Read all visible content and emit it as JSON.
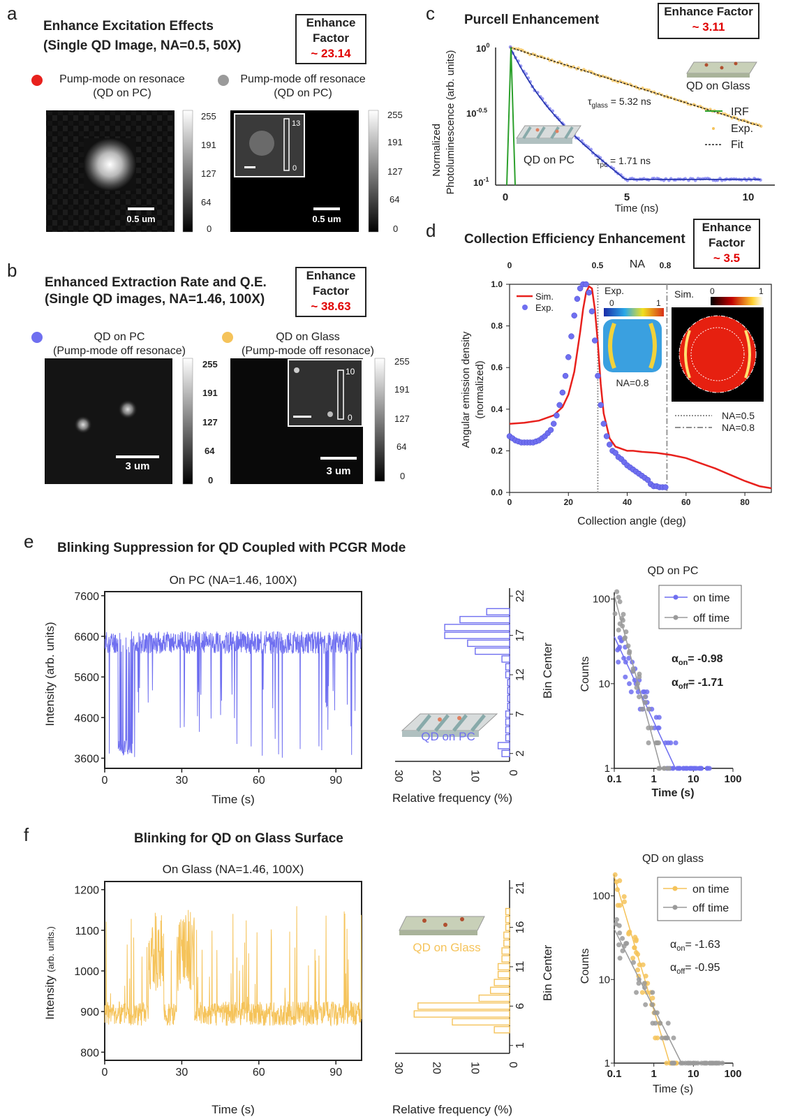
{
  "panels": {
    "a": {
      "label": "a",
      "title1": "Enhance Excitation Effects",
      "title2": "(Single QD Image, NA=0.5, 50X)",
      "box_line1": "Enhance",
      "box_line2": "Factor",
      "box_value": "~ 23.14",
      "legend_on": "Pump-mode on resonace",
      "legend_on_sub": "(QD on PC)",
      "legend_off": "Pump-mode off resonace",
      "legend_off_sub": "(QD on PC)",
      "scale_label": "0.5 um",
      "colorbar_ticks": [
        "255",
        "191",
        "127",
        "64",
        "0"
      ],
      "inset_ticks": [
        "13",
        "0"
      ]
    },
    "b": {
      "label": "b",
      "title1": "Enhanced Extraction Rate and Q.E.",
      "title2": "(Single QD images, NA=1.46, 100X)",
      "box_line1": "Enhance",
      "box_line2": "Factor",
      "box_value": "~ 38.63",
      "legend_pc": "QD on PC",
      "legend_pc_sub": "(Pump-mode off resonace)",
      "legend_glass": "QD on Glass",
      "legend_glass_sub": "(Pump-mode off resonace)",
      "scale_label": "3 um",
      "colorbar_ticks": [
        "255",
        "191",
        "127",
        "64",
        "0"
      ],
      "inset_ticks": [
        "10",
        "0"
      ]
    },
    "c": {
      "label": "c",
      "title": "Purcell Enhancement",
      "box_line1": "Enhance Factor",
      "box_value": "~ 3.11",
      "ylabel1": "Normalized",
      "ylabel2": "Photoluminescence (arb. units)",
      "xlabel": "Time (ns)",
      "yticks": [
        "10",
        "10",
        "10"
      ],
      "yticks_exp": [
        "0",
        "-0.5",
        "-1"
      ],
      "xticks": [
        "0",
        "5",
        "10"
      ],
      "tau_glass_sym": "τ",
      "tau_glass_sub": "glass",
      "tau_glass_val": " = 5.32 ns",
      "tau_pc_sym": "τ",
      "tau_pc_sub": "pc",
      "tau_pc_val": " = 1.71 ns",
      "label_glass": "QD on Glass",
      "label_pc": "QD on PC",
      "legend": [
        "IRF",
        "Exp.",
        "Fit"
      ]
    },
    "d": {
      "label": "d",
      "title": "Collection Efficiency Enhancement",
      "box_line1": "Enhance",
      "box_line2": "Factor",
      "box_value": "~ 3.5",
      "top_axis_label": "NA",
      "top_ticks": [
        "0",
        "0.5",
        "0.8"
      ],
      "ylabel1": "Angular emission density",
      "ylabel2": "(normalized)",
      "xlabel": "Collection angle (deg)",
      "xticks": [
        "0",
        "20",
        "40",
        "60",
        "80"
      ],
      "yticks": [
        "0.0",
        "0.2",
        "0.4",
        "0.6",
        "0.8",
        "1.0"
      ],
      "legend": [
        "Sim.",
        "Exp."
      ],
      "exp_inset_title": "Exp.",
      "exp_scale": [
        "0",
        "1"
      ],
      "exp_inset_na": "NA=0.8",
      "sim_inset_title": "Sim.",
      "sim_scale": [
        "0",
        "1"
      ],
      "na_legend": [
        "NA=0.5",
        "NA=0.8"
      ]
    },
    "e": {
      "label": "e",
      "title": "Blinking Suppression for QD Coupled with PCGR Mode",
      "trace_title": "On PC  (NA=1.46, 100X)",
      "ylabel": "Intensity (arb. units)",
      "xlabel": "Time (s)",
      "yticks": [
        "7600",
        "6600",
        "5600",
        "4600",
        "3600"
      ],
      "xticks": [
        "0",
        "30",
        "60",
        "90"
      ],
      "hist_xlabel": "Relative frequency (%)",
      "hist_xticks": [
        "30",
        "20",
        "10",
        "0"
      ],
      "hist_ylabel": "Bin Center",
      "hist_yticks": [
        "22",
        "17",
        "12",
        "7",
        "2"
      ],
      "hist_label": "QD on PC",
      "log_title": "QD on PC",
      "log_ylabel": "Counts",
      "log_xlabel": "Time (s)",
      "log_xticks": [
        "0.1",
        "1",
        "10",
        "100"
      ],
      "log_yticks": [
        "100",
        "10",
        "1"
      ],
      "legend": [
        "on time",
        "off time"
      ],
      "alpha_on": "= -0.98",
      "alpha_off": "= -1.71",
      "alpha_sym": "α",
      "alpha_on_sub": "on",
      "alpha_off_sub": "off"
    },
    "f": {
      "label": "f",
      "title": "Blinking for QD on Glass Surface",
      "trace_title": "On Glass (NA=1.46, 100X)",
      "ylabel_main": "Intensity",
      "ylabel_unit": "(arb. units.)",
      "xlabel": "Time (s)",
      "yticks": [
        "1200",
        "1100",
        "1000",
        "900",
        "800"
      ],
      "xticks": [
        "0",
        "30",
        "60",
        "90"
      ],
      "hist_xlabel": "Relative frequency (%)",
      "hist_xticks": [
        "30",
        "20",
        "10",
        "0"
      ],
      "hist_ylabel": "Bin Center",
      "hist_yticks": [
        "21",
        "16",
        "11",
        "6",
        "1"
      ],
      "hist_label": "QD on Glass",
      "log_title": "QD on glass",
      "log_ylabel": "Counts",
      "log_xlabel": "Time (s)",
      "log_xticks": [
        "0.1",
        "1",
        "10",
        "100"
      ],
      "log_yticks": [
        "100",
        "10",
        "1"
      ],
      "legend": [
        "on time",
        "off time"
      ],
      "alpha_on": "= -1.63",
      "alpha_off": "= -0.95",
      "alpha_sym": "α",
      "alpha_on_sub": "on",
      "alpha_off_sub": "off"
    }
  },
  "colors": {
    "red": "#e8211d",
    "gray": "#9a9a9a",
    "blue": "#6f6ff0",
    "gold": "#f5c35a",
    "dark": "#222222",
    "green": "#2ca02c",
    "enhance_red": "#e00000"
  },
  "chart_data": [
    {
      "id": "c",
      "type": "line",
      "xlabel": "Time (ns)",
      "ylabel": "Normalized Photoluminescence (arb. units)",
      "xlim": [
        0,
        10.5
      ],
      "ylim": [
        0.1,
        1
      ],
      "yscale": "log",
      "series": [
        {
          "name": "QD on Glass",
          "tau_ns": 5.32
        },
        {
          "name": "QD on PC",
          "tau_ns": 1.71
        },
        {
          "name": "IRF"
        }
      ]
    },
    {
      "id": "d",
      "type": "line",
      "xlabel": "Collection angle (deg)",
      "ylabel": "Angular emission density (normalized)",
      "xlim": [
        0,
        89
      ],
      "ylim": [
        0,
        1
      ],
      "na_lines_deg": [
        30,
        53.5
      ],
      "series": [
        {
          "name": "Sim.",
          "x": [
            0,
            5,
            10,
            15,
            18,
            20,
            22,
            24,
            25,
            26,
            27,
            28,
            29,
            30,
            31,
            32,
            34,
            36,
            38,
            40,
            42,
            45,
            50,
            55,
            60,
            65,
            70,
            75,
            80,
            85,
            89
          ],
          "y": [
            0.33,
            0.335,
            0.345,
            0.37,
            0.41,
            0.47,
            0.58,
            0.77,
            0.88,
            0.96,
            0.99,
            0.98,
            0.88,
            0.72,
            0.52,
            0.38,
            0.26,
            0.22,
            0.21,
            0.2,
            0.2,
            0.195,
            0.19,
            0.18,
            0.165,
            0.14,
            0.115,
            0.085,
            0.055,
            0.03,
            0.02
          ]
        },
        {
          "name": "Exp.",
          "x": [
            0,
            1,
            2,
            3,
            4,
            5,
            6,
            7,
            8,
            9,
            10,
            11,
            12,
            13,
            14,
            15,
            16,
            17,
            18,
            19,
            20,
            21,
            22,
            23,
            24,
            25,
            26,
            27,
            28,
            29,
            30,
            31,
            32,
            33,
            34,
            35,
            36,
            37,
            38,
            39,
            40,
            41,
            42,
            43,
            44,
            45,
            46,
            47,
            48,
            49,
            50,
            51,
            52,
            53
          ],
          "y": [
            0.27,
            0.26,
            0.25,
            0.245,
            0.24,
            0.24,
            0.24,
            0.24,
            0.24,
            0.245,
            0.25,
            0.26,
            0.27,
            0.285,
            0.3,
            0.33,
            0.37,
            0.42,
            0.48,
            0.56,
            0.65,
            0.75,
            0.85,
            0.93,
            0.98,
            1.0,
            1.0,
            0.96,
            0.87,
            0.73,
            0.56,
            0.42,
            0.33,
            0.27,
            0.23,
            0.2,
            0.19,
            0.17,
            0.16,
            0.145,
            0.13,
            0.12,
            0.11,
            0.1,
            0.09,
            0.08,
            0.07,
            0.06,
            0.04,
            0.03,
            0.03,
            0.025,
            0.025,
            0.025
          ]
        }
      ]
    },
    {
      "id": "e-trace",
      "type": "line",
      "xlabel": "Time (s)",
      "ylabel": "Intensity (arb. units)",
      "xlim": [
        0,
        100
      ],
      "ylim": [
        3350,
        7700
      ],
      "baseline": 6450,
      "noise": 280,
      "dips": 3600
    },
    {
      "id": "e-hist",
      "type": "bar",
      "orientation": "horizontal",
      "xlabel": "Relative frequency (%)",
      "ylabel": "Bin Center",
      "xlim": [
        30,
        0
      ],
      "ylim": [
        1,
        23
      ],
      "categories": [
        2,
        3,
        4,
        5,
        6,
        7,
        8,
        9,
        10,
        11,
        12,
        13,
        14,
        15,
        16,
        17,
        18,
        19,
        20
      ],
      "values": [
        2,
        3,
        1,
        1,
        1,
        1,
        0.5,
        0.5,
        0.5,
        0.5,
        1,
        1,
        2,
        9,
        11,
        17,
        17,
        13,
        6
      ]
    },
    {
      "id": "e-log",
      "type": "scatter",
      "xscale": "log",
      "yscale": "log",
      "xlabel": "Time (s)",
      "ylabel": "Counts",
      "xlim": [
        0.1,
        100
      ],
      "ylim": [
        1,
        120
      ],
      "series": [
        {
          "name": "on time",
          "alpha": -0.98
        },
        {
          "name": "off time",
          "alpha": -1.71
        }
      ]
    },
    {
      "id": "f-trace",
      "type": "line",
      "xlabel": "Time (s)",
      "ylabel": "Intensity (arb. units.)",
      "xlim": [
        0,
        100
      ],
      "ylim": [
        780,
        1220
      ],
      "baseline": 895,
      "noise": 30
    },
    {
      "id": "f-hist",
      "type": "bar",
      "orientation": "horizontal",
      "xlabel": "Relative frequency (%)",
      "ylabel": "Bin Center",
      "xlim": [
        30,
        0
      ],
      "ylim": [
        0,
        22
      ],
      "categories": [
        3,
        4,
        5,
        6,
        7,
        8,
        9,
        10,
        11,
        12,
        13,
        14,
        15,
        16,
        17,
        18
      ],
      "values": [
        4,
        15,
        25,
        24,
        8,
        5,
        4,
        3,
        3,
        2,
        2,
        1.5,
        1.5,
        1,
        1,
        1
      ]
    },
    {
      "id": "f-log",
      "type": "scatter",
      "xscale": "log",
      "yscale": "log",
      "xlabel": "Time (s)",
      "ylabel": "Counts",
      "xlim": [
        0.1,
        100
      ],
      "ylim": [
        1,
        180
      ],
      "series": [
        {
          "name": "on time",
          "alpha": -1.63
        },
        {
          "name": "off time",
          "alpha": -0.95
        }
      ]
    }
  ]
}
